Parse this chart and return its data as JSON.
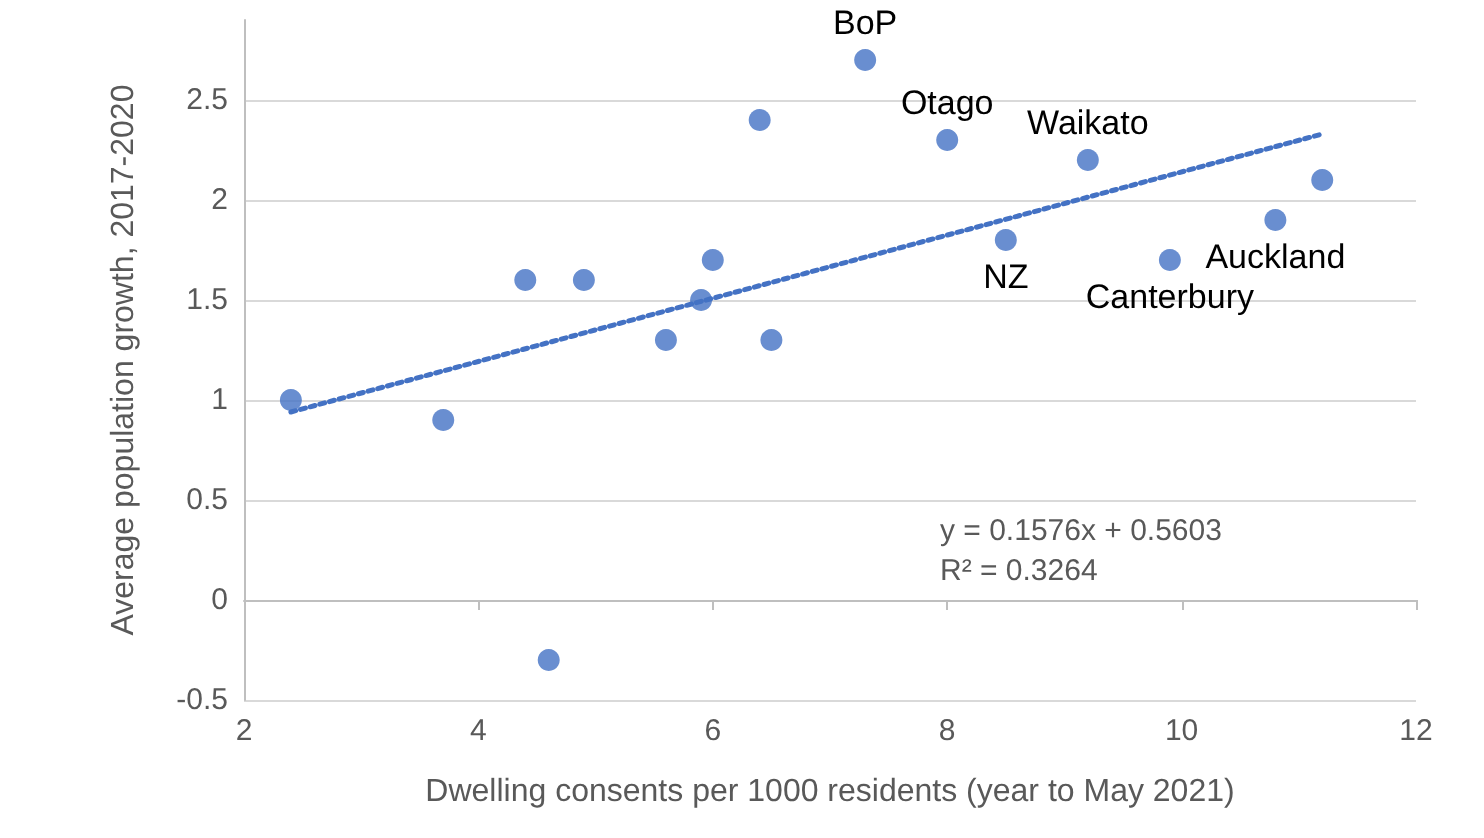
{
  "chart_data": {
    "type": "scatter",
    "xlabel": "Dwelling consents per 1000 residents (year to May 2021)",
    "ylabel": "Average population growth, 2017-2020",
    "series": [
      {
        "color": "#4472c4",
        "x": [
          2.4,
          3.7,
          4.4,
          4.6,
          4.9,
          5.6,
          5.9,
          6.0,
          6.4,
          6.5,
          7.3,
          8.0,
          8.5,
          9.2,
          9.9,
          10.8,
          11.2
        ],
        "values": [
          1.0,
          0.9,
          1.6,
          -0.3,
          1.6,
          1.3,
          1.5,
          1.7,
          2.4,
          1.3,
          2.7,
          2.3,
          1.8,
          2.2,
          1.7,
          1.9,
          2.1
        ]
      },
      {
        "type": "line",
        "color": "#4472c4",
        "line_style": "dotted",
        "marker": "none",
        "x": [
          2.4,
          11.2
        ],
        "values": [
          0.94,
          2.33
        ]
      }
    ],
    "annotations": [
      {
        "text": "BoP",
        "x": 7.3,
        "y": 2.7
      },
      {
        "text": "Otago",
        "x": 8.0,
        "y": 2.3
      },
      {
        "text": "Waikato",
        "x": 9.2,
        "y": 2.2
      },
      {
        "text": "NZ",
        "x": 8.5,
        "y": 1.8
      },
      {
        "text": "Canterbury",
        "x": 9.9,
        "y": 1.7
      },
      {
        "text": "Auckland",
        "x": 10.8,
        "y": 1.9
      },
      "y = 0.1576x + 0.5603",
      "R² = 0.3264"
    ],
    "xlim": [
      2,
      12
    ],
    "xticks": [
      2,
      4,
      6,
      8,
      10,
      12
    ],
    "ylim": [
      -0.5,
      2.9
    ],
    "yticks": [
      -0.5,
      0,
      0.5,
      1,
      1.5,
      2,
      2.5
    ],
    "grid": "y",
    "marker": "circle"
  }
}
